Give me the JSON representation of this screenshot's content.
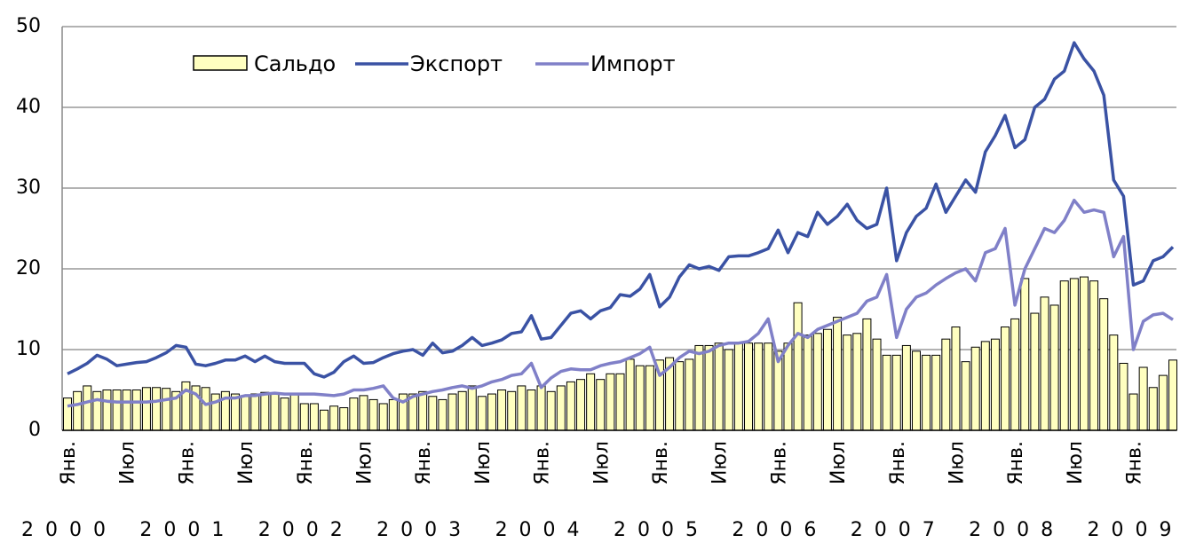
{
  "chart_data": {
    "type": "bar",
    "categories": [
      "Янв.",
      null,
      null,
      null,
      null,
      null,
      "Июл",
      null,
      null,
      null,
      null,
      null,
      "Янв.",
      null,
      null,
      null,
      null,
      null,
      "Июл",
      null,
      null,
      null,
      null,
      null,
      "Янв.",
      null,
      null,
      null,
      null,
      null,
      "Июл",
      null,
      null,
      null,
      null,
      null,
      "Янв.",
      null,
      null,
      null,
      null,
      null,
      "Июл",
      null,
      null,
      null,
      null,
      null,
      "Янв.",
      null,
      null,
      null,
      null,
      null,
      "Июл",
      null,
      null,
      null,
      null,
      null,
      "Янв.",
      null,
      null,
      null,
      null,
      null,
      "Июл",
      null,
      null,
      null,
      null,
      null,
      "Янв.",
      null,
      null,
      null,
      null,
      null,
      "Июл",
      null,
      null,
      null,
      null,
      null,
      "Янв.",
      null,
      null,
      null,
      null,
      null,
      "Июл",
      null,
      null,
      null,
      null,
      null,
      "Янв.",
      null,
      null,
      null,
      null,
      null,
      "Июл",
      null,
      null,
      null,
      null,
      null,
      "Янв.",
      null,
      null,
      null,
      null
    ],
    "x_groups": [
      "2000",
      "2001",
      "2002",
      "2003",
      "2004",
      "2005",
      "2006",
      "2007",
      "2008",
      "2009"
    ],
    "series": [
      {
        "name": "Сальдо",
        "type": "bar",
        "color": "#ffffc0",
        "values": [
          4.0,
          4.8,
          5.5,
          4.8,
          5.0,
          5.0,
          5.0,
          5.0,
          5.3,
          5.3,
          5.2,
          4.8,
          6.0,
          5.5,
          5.3,
          4.5,
          4.8,
          4.5,
          4.3,
          4.5,
          4.7,
          4.5,
          4.0,
          4.5,
          3.3,
          3.3,
          2.5,
          3.0,
          2.8,
          4.0,
          4.3,
          3.8,
          3.3,
          3.8,
          4.5,
          4.5,
          4.8,
          4.2,
          3.8,
          4.5,
          4.8,
          5.5,
          4.2,
          4.5,
          5.0,
          4.8,
          5.5,
          5.0,
          5.5,
          4.8,
          5.5,
          6.0,
          6.3,
          7.0,
          6.3,
          7.0,
          7.0,
          8.8,
          8.0,
          8.0,
          8.7,
          9.0,
          8.5,
          8.8,
          10.5,
          10.5,
          10.8,
          10.0,
          10.8,
          10.8,
          10.8,
          10.8,
          9.8,
          10.8,
          15.8,
          11.8,
          12.0,
          12.5,
          14.0,
          11.8,
          12.0,
          13.8,
          11.3,
          9.3,
          9.3,
          10.5,
          9.8,
          9.3,
          9.3,
          11.3,
          12.8,
          8.5,
          10.3,
          11.0,
          11.3,
          12.8,
          13.8,
          18.8,
          14.5,
          16.5,
          15.5,
          18.5,
          18.8,
          19.0,
          18.5,
          16.3,
          11.8,
          8.3,
          4.5,
          7.8,
          5.3,
          6.8,
          8.7
        ]
      },
      {
        "name": "Экспорт",
        "type": "line",
        "color": "#3a52a4",
        "values": [
          7.0,
          7.6,
          8.3,
          9.3,
          8.8,
          8.0,
          8.2,
          8.4,
          8.5,
          9.0,
          9.6,
          10.5,
          10.3,
          8.2,
          8.0,
          8.3,
          8.7,
          8.7,
          9.2,
          8.5,
          9.2,
          8.5,
          8.3,
          8.3,
          8.3,
          7.0,
          6.6,
          7.2,
          8.5,
          9.2,
          8.3,
          8.4,
          9.0,
          9.5,
          9.8,
          10.0,
          9.3,
          10.8,
          9.6,
          9.8,
          10.5,
          11.5,
          10.5,
          10.8,
          11.2,
          12.0,
          12.2,
          14.2,
          11.3,
          11.5,
          13.0,
          14.5,
          14.8,
          13.8,
          14.8,
          15.2,
          16.8,
          16.6,
          17.5,
          19.3,
          15.3,
          16.5,
          19.0,
          20.5,
          20.0,
          20.3,
          19.8,
          21.5,
          21.6,
          21.6,
          22.0,
          22.5,
          24.8,
          22.0,
          24.5,
          24.0,
          27.0,
          25.5,
          26.5,
          28.0,
          26.0,
          25.0,
          25.5,
          30.0,
          21.0,
          24.5,
          26.5,
          27.5,
          30.5,
          27.0,
          29.0,
          31.0,
          29.5,
          34.5,
          36.5,
          39.0,
          35.0,
          36.0,
          40.0,
          41.0,
          43.5,
          44.5,
          48.0,
          46.0,
          44.5,
          41.5,
          31.0,
          29.0,
          18.0,
          18.5,
          21.0,
          21.5,
          22.7
        ]
      },
      {
        "name": "Импорт",
        "type": "line",
        "color": "#8080c8",
        "values": [
          3.0,
          3.2,
          3.5,
          3.8,
          3.6,
          3.5,
          3.5,
          3.5,
          3.5,
          3.6,
          3.8,
          4.0,
          5.0,
          4.5,
          3.2,
          3.5,
          4.0,
          4.0,
          4.3,
          4.3,
          4.5,
          4.6,
          4.5,
          4.5,
          4.5,
          4.5,
          4.4,
          4.3,
          4.5,
          5.0,
          5.0,
          5.2,
          5.5,
          4.0,
          3.5,
          4.2,
          4.5,
          4.8,
          5.0,
          5.3,
          5.5,
          5.2,
          5.5,
          6.0,
          6.3,
          6.8,
          7.0,
          8.3,
          5.3,
          6.5,
          7.3,
          7.6,
          7.5,
          7.5,
          8.0,
          8.3,
          8.5,
          9.0,
          9.5,
          10.3,
          6.8,
          7.8,
          9.0,
          9.8,
          9.5,
          9.8,
          10.5,
          10.8,
          10.8,
          11.0,
          12.0,
          13.8,
          8.5,
          10.5,
          12.0,
          11.5,
          12.5,
          13.0,
          13.5,
          14.0,
          14.5,
          16.0,
          16.5,
          19.3,
          11.5,
          15.0,
          16.5,
          17.0,
          18.0,
          18.8,
          19.5,
          20.0,
          18.5,
          22.0,
          22.5,
          25.0,
          15.5,
          20.0,
          22.5,
          25.0,
          24.5,
          26.0,
          28.5,
          27.0,
          27.3,
          27.0,
          21.5,
          24.0,
          10.0,
          13.5,
          14.3,
          14.5,
          13.7
        ]
      }
    ],
    "ylim": [
      0,
      50
    ],
    "yticks": [
      0,
      10,
      20,
      30,
      40,
      50
    ],
    "grid": true
  }
}
